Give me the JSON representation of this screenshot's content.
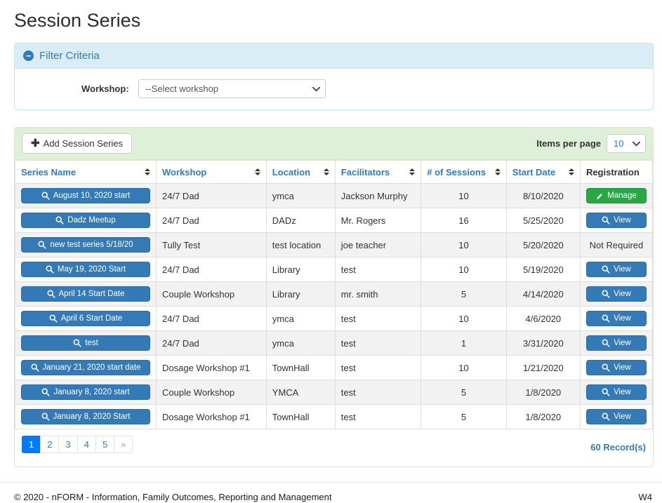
{
  "page": {
    "title": "Session Series"
  },
  "filter": {
    "header": "Filter Criteria",
    "collapse_icon": "minus-circle-icon",
    "workshop_label": "Workshop:",
    "workshop_selected": "--Select workshop"
  },
  "toolbar": {
    "add_button_label": "Add Session Series",
    "add_button_icon": "plus-icon",
    "items_per_page_label": "Items per page",
    "items_per_page_value": "10"
  },
  "table": {
    "columns": [
      {
        "label": "Series Name",
        "sortable": true
      },
      {
        "label": "Workshop",
        "sortable": true
      },
      {
        "label": "Location",
        "sortable": true
      },
      {
        "label": "Facilitators",
        "sortable": true
      },
      {
        "label": "# of Sessions",
        "sortable": true
      },
      {
        "label": "Start Date",
        "sortable": true
      },
      {
        "label": "Registration",
        "sortable": false
      }
    ],
    "rows": [
      {
        "series_name": "August 10, 2020 start",
        "workshop": "24/7 Dad",
        "location": "ymca",
        "facilitators": "Jackson Murphy",
        "sessions": "10",
        "start_date": "8/10/2020",
        "registration": {
          "type": "manage",
          "label": "Manage",
          "icon": "pencil-icon"
        }
      },
      {
        "series_name": "Dadz Meetup",
        "workshop": "24/7 Dad",
        "location": "DADz",
        "facilitators": "Mr. Rogers",
        "sessions": "16",
        "start_date": "5/25/2020",
        "registration": {
          "type": "view",
          "label": "View",
          "icon": "search-icon"
        }
      },
      {
        "series_name": "new test series 5/18/20",
        "workshop": "Tully Test",
        "location": "test location",
        "facilitators": "joe teacher",
        "sessions": "10",
        "start_date": "5/20/2020",
        "registration": {
          "type": "text",
          "label": "Not Required"
        }
      },
      {
        "series_name": "May 19, 2020 Start",
        "workshop": "24/7 Dad",
        "location": "Library",
        "facilitators": "test",
        "sessions": "10",
        "start_date": "5/19/2020",
        "registration": {
          "type": "view",
          "label": "View",
          "icon": "search-icon"
        }
      },
      {
        "series_name": "April 14 Start Date",
        "workshop": "Couple Workshop",
        "location": "Library",
        "facilitators": "mr. smith",
        "sessions": "5",
        "start_date": "4/14/2020",
        "registration": {
          "type": "view",
          "label": "View",
          "icon": "search-icon"
        }
      },
      {
        "series_name": "April 6 Start Date",
        "workshop": "24/7 Dad",
        "location": "ymca",
        "facilitators": "test",
        "sessions": "10",
        "start_date": "4/6/2020",
        "registration": {
          "type": "view",
          "label": "View",
          "icon": "search-icon"
        }
      },
      {
        "series_name": "test",
        "workshop": "24/7 Dad",
        "location": "ymca",
        "facilitators": "test",
        "sessions": "1",
        "start_date": "3/31/2020",
        "registration": {
          "type": "view",
          "label": "View",
          "icon": "search-icon"
        }
      },
      {
        "series_name": "January 21, 2020 start date",
        "workshop": "Dosage Workshop #1",
        "location": "TownHall",
        "facilitators": "test",
        "sessions": "10",
        "start_date": "1/21/2020",
        "registration": {
          "type": "view",
          "label": "View",
          "icon": "search-icon"
        }
      },
      {
        "series_name": "January 8, 2020 start",
        "workshop": "Couple Workshop",
        "location": "YMCA",
        "facilitators": "test",
        "sessions": "5",
        "start_date": "1/8/2020",
        "registration": {
          "type": "view",
          "label": "View",
          "icon": "search-icon"
        }
      },
      {
        "series_name": "January 8, 2020 Start",
        "workshop": "Dosage Workshop #1",
        "location": "TownHall",
        "facilitators": "test",
        "sessions": "5",
        "start_date": "1/8/2020",
        "registration": {
          "type": "view",
          "label": "View",
          "icon": "search-icon"
        }
      }
    ]
  },
  "pagination": {
    "pages": [
      "1",
      "2",
      "3",
      "4",
      "5",
      "»"
    ],
    "active_page": "1",
    "record_count": "60 Record(s)"
  },
  "footer": {
    "copyright": "© 2020 - nFORM - Information, Family Outcomes, Reporting and Management",
    "right_label": "W4"
  },
  "colors": {
    "link_blue": "#337ab7",
    "button_blue": "#337ab7",
    "success_green": "#28a745",
    "active_page_blue": "#007bff",
    "filter_heading_bg": "#d9edf7",
    "filter_border": "#bce8f1",
    "toolbar_bg": "#dff0d8",
    "toolbar_border": "#d6e9c6",
    "stripe_gray": "#f2f2f2",
    "table_border": "#dddddd"
  }
}
